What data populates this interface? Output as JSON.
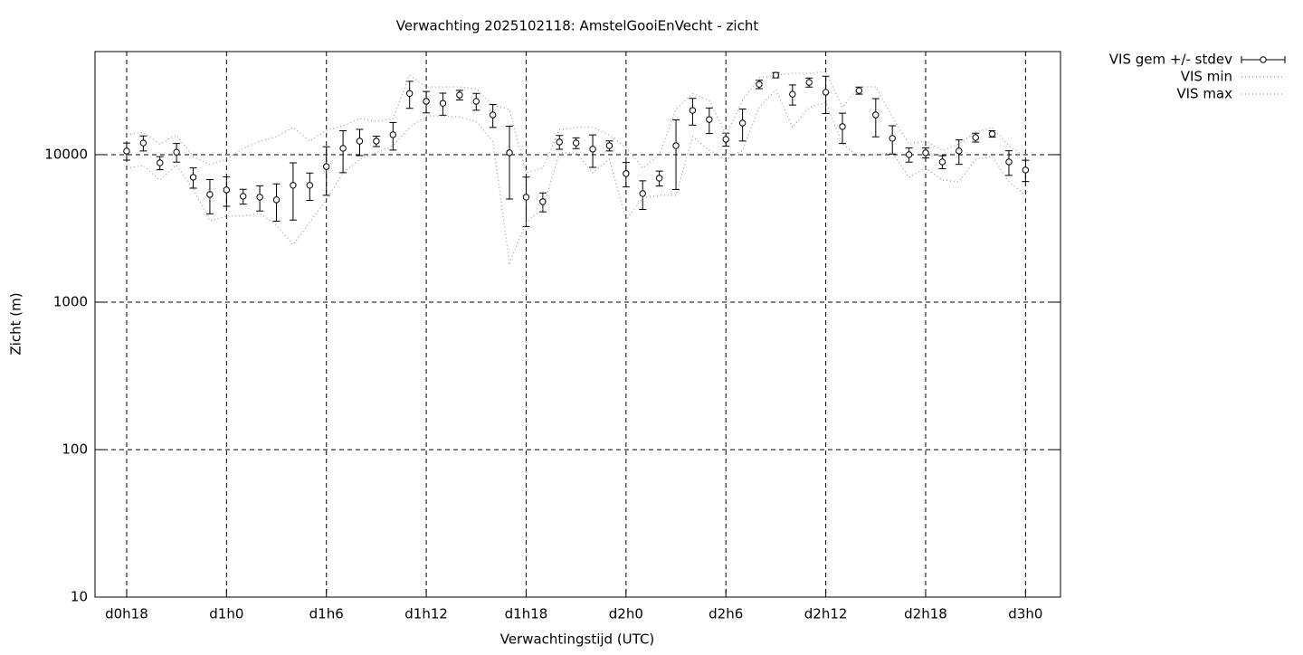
{
  "chart_data": {
    "type": "errorbar",
    "title": "Verwachting 2025102118: AmstelGooiEnVecht - zicht",
    "x_label": "Verwachtingstijd (UTC)",
    "y_label": "Zicht (m)",
    "log_y": true,
    "grid": true,
    "legend": "outside-top-right",
    "xlim": [
      16.1,
      74.1
    ],
    "xticks": [
      {
        "value": 18,
        "label": "d0h18"
      },
      {
        "value": 24,
        "label": "d1h0"
      },
      {
        "value": 30,
        "label": "d1h6"
      },
      {
        "value": 36,
        "label": "d1h12"
      },
      {
        "value": 42,
        "label": "d1h18"
      },
      {
        "value": 48,
        "label": "d2h0"
      },
      {
        "value": 54,
        "label": "d2h6"
      },
      {
        "value": 60,
        "label": "d2h12"
      },
      {
        "value": 66,
        "label": "d2h18"
      },
      {
        "value": 72,
        "label": "d3h0"
      }
    ],
    "ylim": [
      10,
      50000
    ],
    "yticks": [
      10,
      100,
      1000,
      10000
    ],
    "x": [
      18,
      19,
      20,
      21,
      22,
      23,
      24,
      25,
      26,
      27,
      28,
      29,
      30,
      31,
      32,
      33,
      34,
      35,
      36,
      37,
      38,
      39,
      40,
      41,
      42,
      43,
      44,
      45,
      46,
      47,
      48,
      49,
      50,
      51,
      52,
      53,
      54,
      55,
      56,
      57,
      58,
      59,
      60,
      61,
      62,
      63,
      64,
      65,
      66,
      67,
      68,
      69,
      70,
      71,
      72
    ],
    "series": [
      {
        "name": "VIS gem +/- stdev",
        "color": "#000000",
        "values": [
          10580,
          12000,
          8800,
          10400,
          7030,
          5370,
          5770,
          5220,
          5150,
          4940,
          6200,
          6200,
          8300,
          11040,
          12350,
          12350,
          13640,
          26000,
          23000,
          22300,
          25400,
          23000,
          18600,
          10300,
          5150,
          4800,
          12180,
          12000,
          10900,
          11500,
          7440,
          5450,
          6930,
          11500,
          19960,
          17300,
          12710,
          16380,
          30000,
          34600,
          25700,
          30900,
          26500,
          15500,
          27200,
          18600,
          12900,
          10000,
          10300,
          8930,
          10600,
          13070,
          13830,
          8930,
          7870
        ],
        "errors": [
          1400,
          1400,
          900,
          1500,
          1100,
          1400,
          1300,
          600,
          1000,
          1400,
          2600,
          1300,
          3000,
          3500,
          2500,
          1000,
          2900,
          5400,
          3800,
          3800,
          1900,
          3000,
          3300,
          5300,
          1900,
          700,
          1300,
          1000,
          2700,
          900,
          1400,
          1200,
          800,
          5700,
          4100,
          3400,
          1300,
          4000,
          2000,
          1400,
          4000,
          2200,
          7500,
          3600,
          1500,
          5400,
          2800,
          1100,
          800,
          900,
          2000,
          900,
          700,
          1700,
          1300
        ]
      },
      {
        "name": "VIS min",
        "color": "#999999",
        "values": [
          8100,
          8450,
          6730,
          8450,
          5850,
          3570,
          3830,
          3830,
          4000,
          3330,
          2450,
          3480,
          4940,
          7530,
          9300,
          10300,
          11500,
          15300,
          18300,
          18300,
          18000,
          16800,
          12350,
          1840,
          3480,
          4290,
          10300,
          10300,
          7530,
          9300,
          3620,
          5090,
          5300,
          5300,
          13250,
          10700,
          9300,
          10700,
          20900,
          27600,
          15300,
          20900,
          22600,
          11800,
          9700,
          10000,
          10300,
          7030,
          8100,
          6730,
          6550,
          9300,
          9700,
          6550,
          5300
        ]
      },
      {
        "name": "VIS max",
        "color": "#999999",
        "values": [
          13600,
          14200,
          11800,
          13600,
          9700,
          8560,
          9300,
          11000,
          12350,
          13250,
          15300,
          12350,
          14600,
          15700,
          17600,
          16800,
          17600,
          34600,
          28800,
          28800,
          28800,
          28000,
          21700,
          20200,
          7530,
          8100,
          14800,
          15300,
          15300,
          13600,
          11200,
          8100,
          10000,
          20200,
          26000,
          23300,
          13600,
          23300,
          33200,
          34600,
          35600,
          35600,
          36600,
          20900,
          28800,
          28800,
          18000,
          11800,
          12350,
          10700,
          11800,
          14200,
          15300,
          11500,
          9700
        ]
      }
    ]
  }
}
